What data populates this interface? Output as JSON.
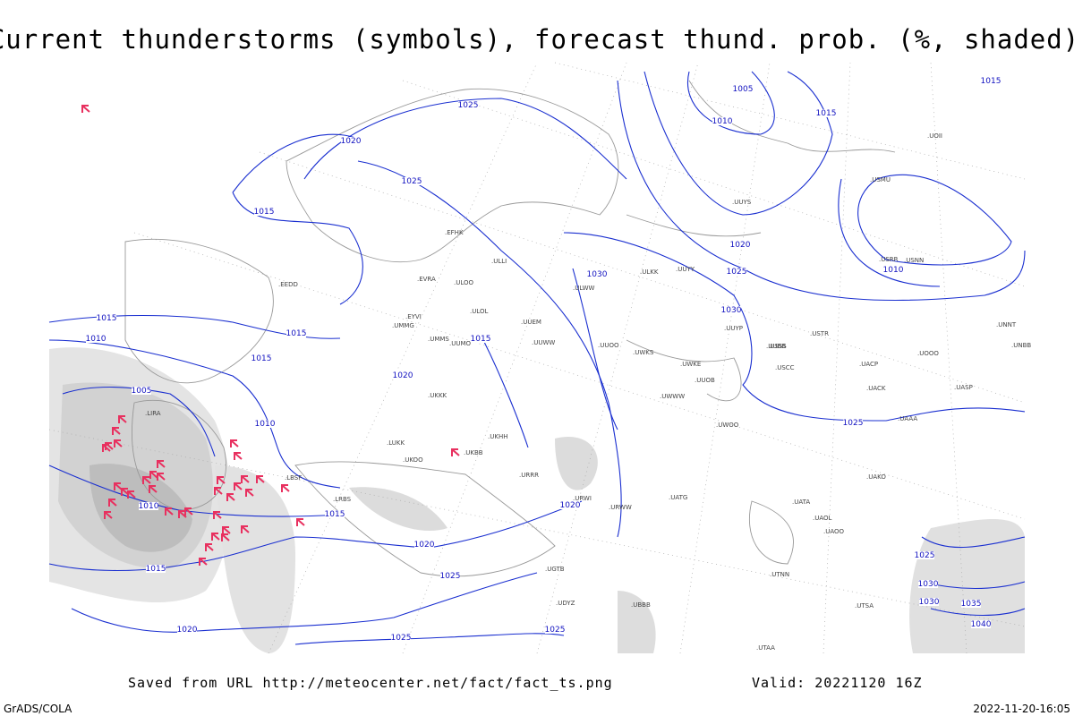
{
  "header": {
    "title": "Current thunderstorms (symbols), forecast thund. prob. (%, shaded)"
  },
  "isobar_labels": [
    "1005",
    "1010",
    "1015",
    "1015",
    "1020",
    "1025",
    "1025",
    "1015",
    "1020",
    "1025",
    "1010",
    "1030",
    "1030",
    "1015",
    "1010",
    "1015",
    "1015",
    "1015",
    "1020",
    "1005",
    "1010",
    "1025",
    "1010",
    "1015",
    "1020",
    "1020",
    "1015",
    "1025",
    "1025",
    "1030",
    "1030",
    "1035",
    "1040",
    "1020",
    "1025",
    "1025"
  ],
  "stations": [
    ".UUYS",
    ".UUYY",
    ".ULKK",
    ".ULWW",
    ".UUEM",
    ".UUWW",
    ".UUOO",
    ".UUBB",
    ".UWKS",
    ".UWKE",
    ".UUOB",
    ".UWWW",
    ".UWOO",
    ".USSS",
    ".USCC",
    ".UUMO",
    ".ULOL",
    ".ULOO",
    ".UMMG",
    ".UMMS",
    ".EVRA",
    ".EYVI",
    ".UKKK",
    ".UKHH",
    ".UKBB",
    ".UKOO",
    ".LUKK",
    ".URRR",
    ".URWW",
    ".URWI",
    ".UATG",
    ".UATA",
    ".UAOL",
    ".UAOO",
    ".USRR",
    ".USNN",
    ".USMU",
    ".USTR",
    ".UACP",
    ".UACK",
    ".UAAA",
    ".UASP",
    ".UAKO",
    ".UTSA",
    ".UTNN",
    ".UTAA",
    ".LRBS",
    ".LBSF",
    ".LIRA",
    ".UUYP",
    ".ULLI",
    ".EFHK",
    ".EEDD",
    ".UGTB",
    ".UBBB",
    ".UDYZ",
    ".UNNT",
    ".UNBB",
    ".UOOO",
    ".UOII"
  ],
  "footer": {
    "source": "Saved from URL http://meteocenter.net/fact/fact_ts.png",
    "valid": "Valid: 20221120 16Z",
    "software": "GrADS/COLA",
    "timestamp": "2022-11-20-16:05"
  }
}
